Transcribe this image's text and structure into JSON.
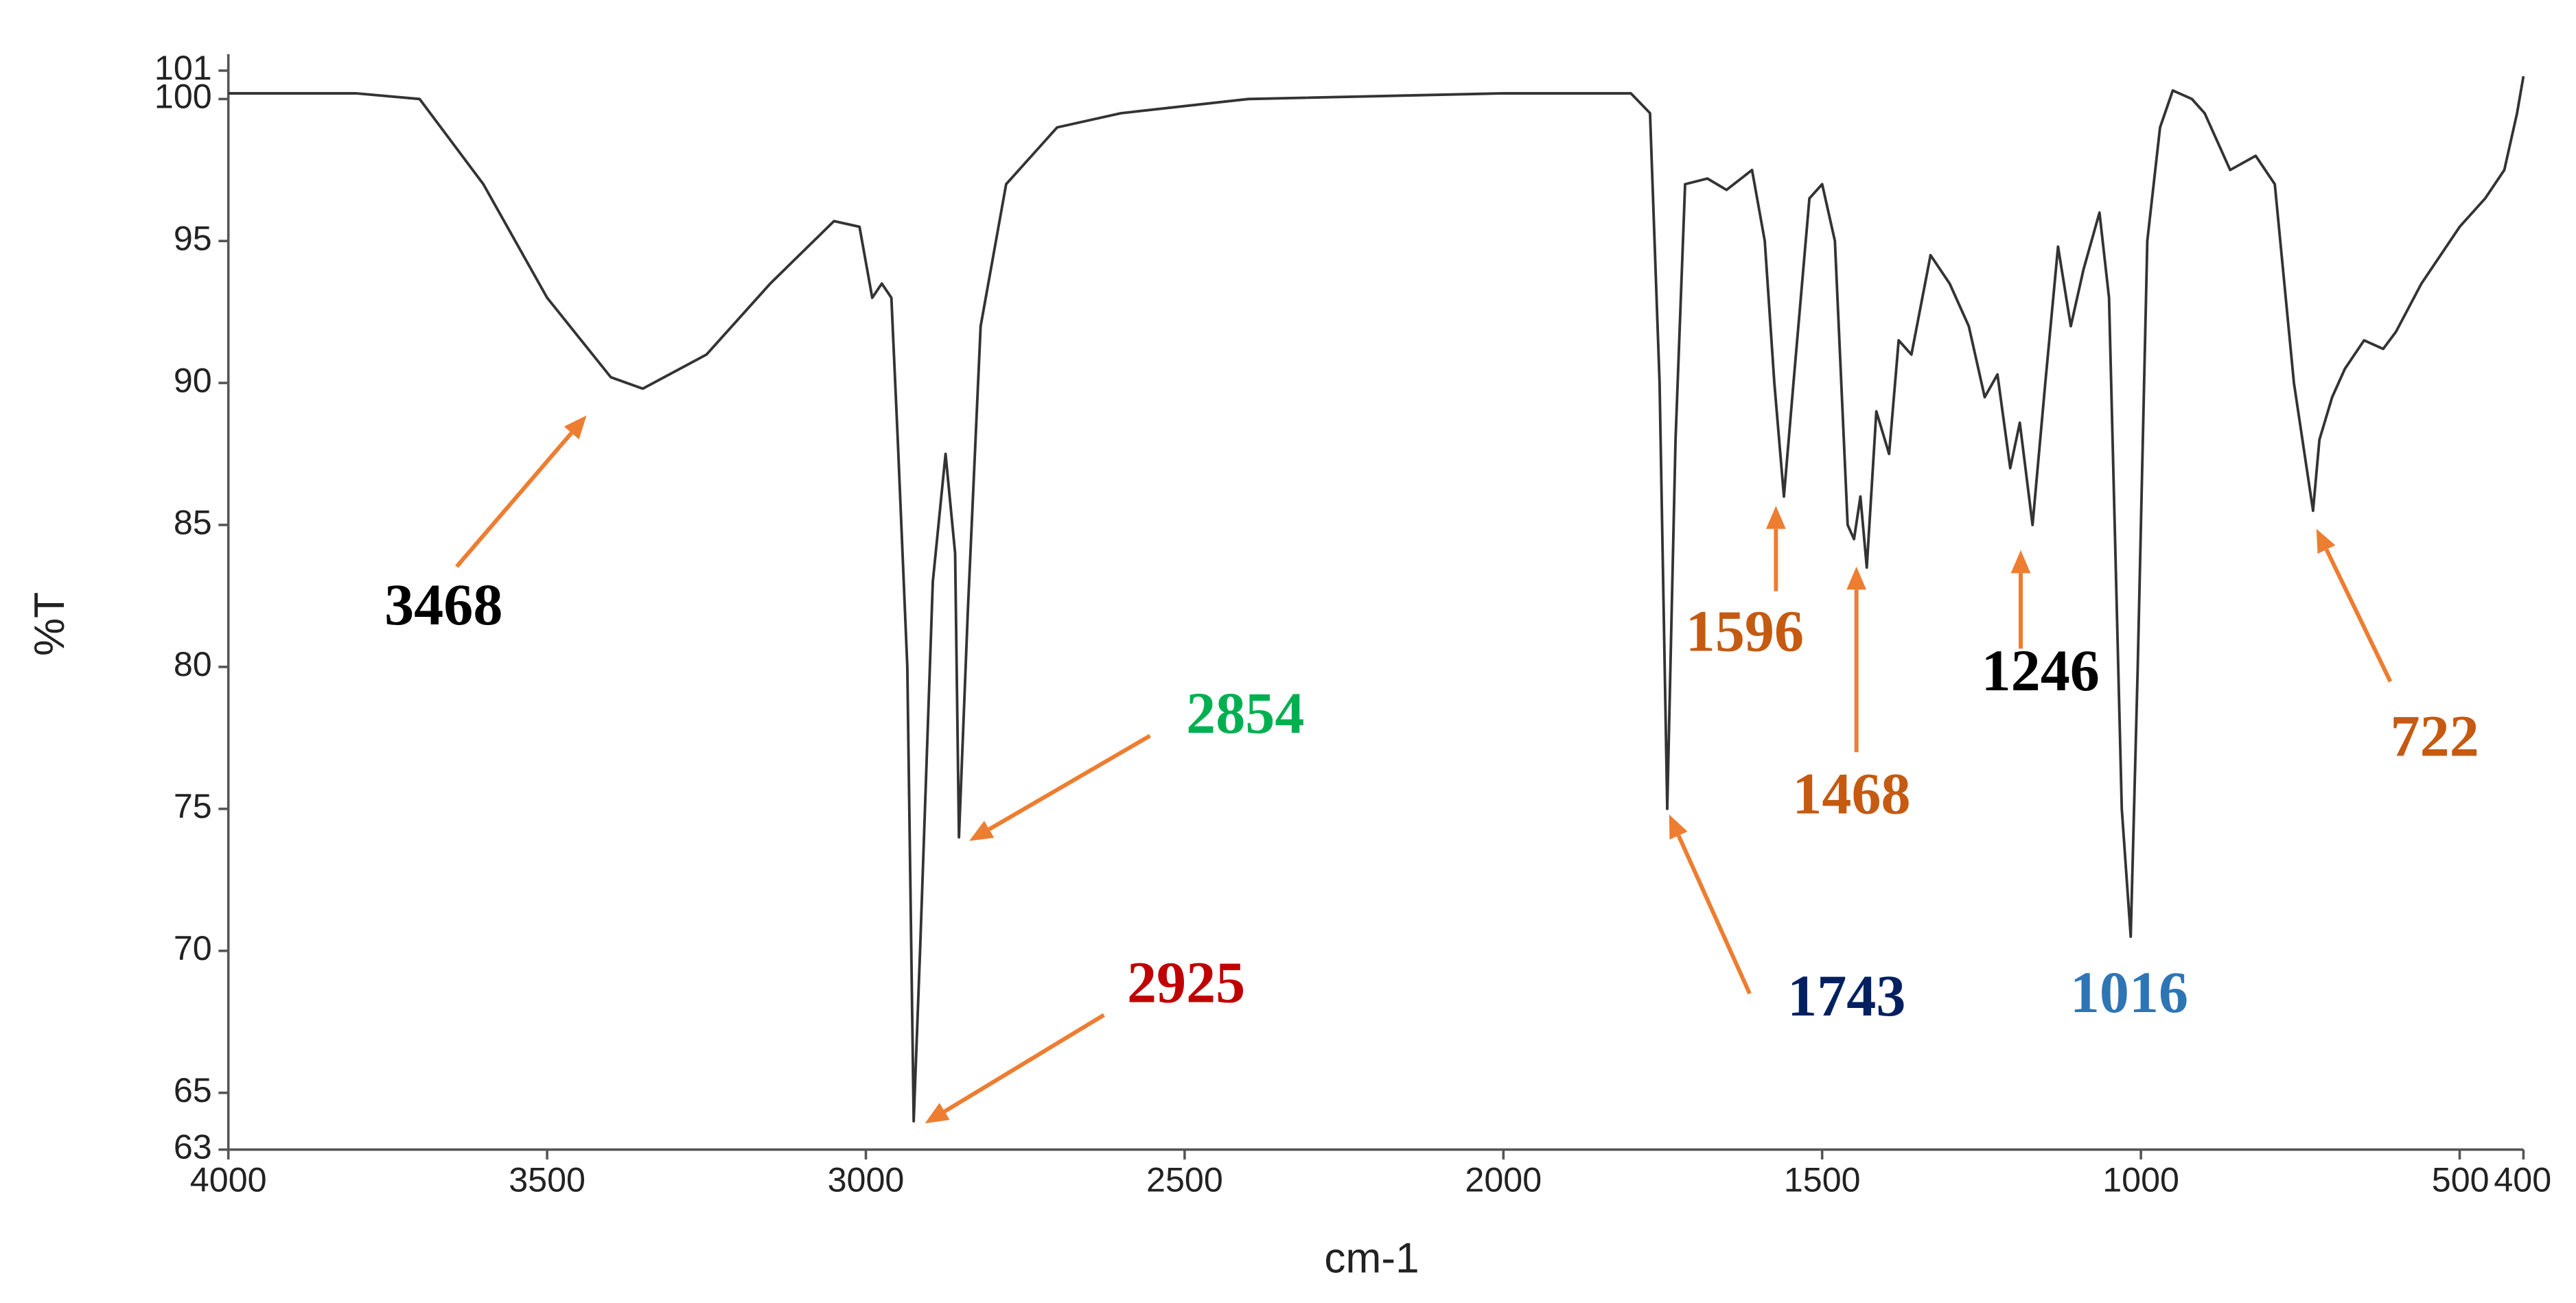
{
  "chart_data": {
    "type": "line",
    "xlabel": "cm-1",
    "ylabel": "%T",
    "xlim": [
      4000,
      400
    ],
    "ylim": [
      63,
      101
    ],
    "xticks": [
      4000,
      3500,
      3000,
      2500,
      2000,
      1500,
      1000,
      500,
      400
    ],
    "yticks": [
      63,
      65,
      70,
      75,
      80,
      85,
      90,
      95,
      100,
      101
    ],
    "series": [
      {
        "color": "#333333",
        "x": [
          4000,
          3800,
          3700,
          3600,
          3500,
          3400,
          3350,
          3250,
          3150,
          3050,
          3010,
          2990,
          2975,
          2960,
          2950,
          2935,
          2925,
          2915,
          2895,
          2875,
          2860,
          2854,
          2840,
          2820,
          2780,
          2700,
          2600,
          2400,
          2000,
          1800,
          1770,
          1755,
          1743,
          1730,
          1715,
          1680,
          1650,
          1610,
          1590,
          1575,
          1560,
          1545,
          1520,
          1500,
          1480,
          1460,
          1450,
          1440,
          1430,
          1415,
          1395,
          1380,
          1360,
          1330,
          1300,
          1270,
          1245,
          1225,
          1205,
          1190,
          1170,
          1150,
          1130,
          1110,
          1090,
          1065,
          1050,
          1030,
          1016,
          1005,
          990,
          970,
          950,
          920,
          900,
          880,
          860,
          820,
          790,
          760,
          740,
          730,
          720,
          700,
          680,
          650,
          620,
          600,
          560,
          500,
          460,
          430,
          410,
          400
        ],
        "values": [
          100.2,
          100.2,
          100,
          97,
          93,
          90.2,
          89.8,
          91,
          93.5,
          95.7,
          95.5,
          93,
          93.5,
          93,
          88,
          80,
          64,
          70,
          83,
          87.5,
          84,
          74,
          82,
          92,
          97,
          99,
          99.5,
          100,
          100.2,
          100.2,
          99.5,
          90,
          75,
          88,
          97,
          97.2,
          96.8,
          97.5,
          95,
          90,
          86,
          90,
          96.5,
          97,
          95,
          85,
          84.5,
          86,
          83.5,
          89,
          87.5,
          91.5,
          91,
          94.5,
          93.5,
          92,
          89.5,
          90.3,
          87,
          88.6,
          85,
          90,
          94.8,
          92,
          94,
          96,
          93,
          75,
          70.5,
          80,
          95,
          99,
          100.3,
          100,
          99.5,
          98.5,
          97.5,
          98,
          97,
          90,
          87,
          85.5,
          88,
          89.5,
          90.5,
          91.5,
          91.2,
          91.8,
          93.5,
          95.5,
          96.5,
          97.5,
          99.5,
          100.8
        ]
      }
    ],
    "arrow_color": "#ed7d31",
    "annotations": [
      {
        "text": "3468",
        "color": "#000000"
      },
      {
        "text": "2854",
        "color": "#00b050"
      },
      {
        "text": "2925",
        "color": "#c00000"
      },
      {
        "text": "1596",
        "color": "#c55a11"
      },
      {
        "text": "1468",
        "color": "#c55a11"
      },
      {
        "text": "1246",
        "color": "#000000"
      },
      {
        "text": "1743",
        "color": "#002060"
      },
      {
        "text": "1016",
        "color": "#2e75b6"
      },
      {
        "text": "722",
        "color": "#c55a11"
      }
    ]
  }
}
